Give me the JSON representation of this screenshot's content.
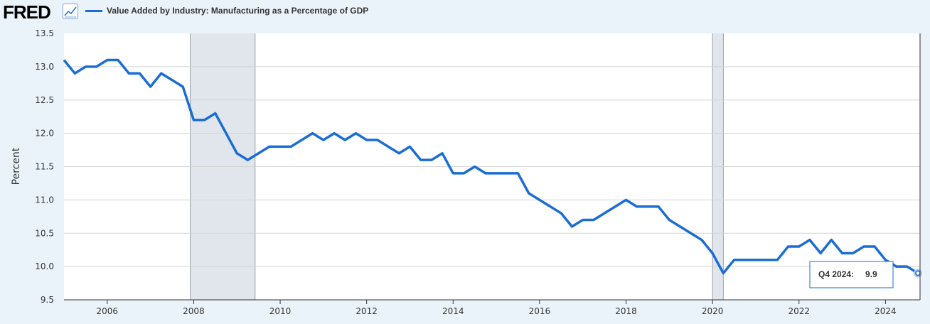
{
  "header": {
    "logo": "FRED",
    "logo_icon": "trend-chart-icon",
    "legend_label": "Value Added by Industry: Manufacturing as a Percentage of GDP",
    "series_color": "#1a6dd4"
  },
  "tooltip": {
    "label": "Q4 2024:",
    "value": "9.9"
  },
  "chart_data": {
    "type": "line",
    "title": "",
    "ylabel": "Percent",
    "xlabel": "",
    "ylim": [
      9.5,
      13.5
    ],
    "xlim": [
      2005.0,
      2024.8
    ],
    "yticks": [
      "9.5",
      "10.0",
      "10.5",
      "11.0",
      "11.5",
      "12.0",
      "12.5",
      "13.0",
      "13.5"
    ],
    "xticks": [
      "2006",
      "2008",
      "2010",
      "2012",
      "2014",
      "2016",
      "2018",
      "2020",
      "2022",
      "2024"
    ],
    "grid": true,
    "recessions": [
      [
        2007.92,
        2009.42
      ],
      [
        2020.0,
        2020.25
      ]
    ],
    "series": [
      {
        "name": "Value Added by Industry: Manufacturing as a Percentage of GDP",
        "color": "#1a6dd4",
        "points": [
          [
            2005.0,
            13.1
          ],
          [
            2005.25,
            12.9
          ],
          [
            2005.5,
            13.0
          ],
          [
            2005.75,
            13.0
          ],
          [
            2006.0,
            13.1
          ],
          [
            2006.25,
            13.1
          ],
          [
            2006.5,
            12.9
          ],
          [
            2006.75,
            12.9
          ],
          [
            2007.0,
            12.7
          ],
          [
            2007.25,
            12.9
          ],
          [
            2007.5,
            12.8
          ],
          [
            2007.75,
            12.7
          ],
          [
            2008.0,
            12.2
          ],
          [
            2008.25,
            12.2
          ],
          [
            2008.5,
            12.3
          ],
          [
            2008.75,
            12.0
          ],
          [
            2009.0,
            11.7
          ],
          [
            2009.25,
            11.6
          ],
          [
            2009.5,
            11.7
          ],
          [
            2009.75,
            11.8
          ],
          [
            2010.0,
            11.8
          ],
          [
            2010.25,
            11.8
          ],
          [
            2010.5,
            11.9
          ],
          [
            2010.75,
            12.0
          ],
          [
            2011.0,
            11.9
          ],
          [
            2011.25,
            12.0
          ],
          [
            2011.5,
            11.9
          ],
          [
            2011.75,
            12.0
          ],
          [
            2012.0,
            11.9
          ],
          [
            2012.25,
            11.9
          ],
          [
            2012.5,
            11.8
          ],
          [
            2012.75,
            11.7
          ],
          [
            2013.0,
            11.8
          ],
          [
            2013.25,
            11.6
          ],
          [
            2013.5,
            11.6
          ],
          [
            2013.75,
            11.7
          ],
          [
            2014.0,
            11.4
          ],
          [
            2014.25,
            11.4
          ],
          [
            2014.5,
            11.5
          ],
          [
            2014.75,
            11.4
          ],
          [
            2015.0,
            11.4
          ],
          [
            2015.25,
            11.4
          ],
          [
            2015.5,
            11.4
          ],
          [
            2015.75,
            11.1
          ],
          [
            2016.0,
            11.0
          ],
          [
            2016.25,
            10.9
          ],
          [
            2016.5,
            10.8
          ],
          [
            2016.75,
            10.6
          ],
          [
            2017.0,
            10.7
          ],
          [
            2017.25,
            10.7
          ],
          [
            2017.5,
            10.8
          ],
          [
            2017.75,
            10.9
          ],
          [
            2018.0,
            11.0
          ],
          [
            2018.25,
            10.9
          ],
          [
            2018.5,
            10.9
          ],
          [
            2018.75,
            10.9
          ],
          [
            2019.0,
            10.7
          ],
          [
            2019.25,
            10.6
          ],
          [
            2019.5,
            10.5
          ],
          [
            2019.75,
            10.4
          ],
          [
            2020.0,
            10.2
          ],
          [
            2020.25,
            9.9
          ],
          [
            2020.5,
            10.1
          ],
          [
            2020.75,
            10.1
          ],
          [
            2021.0,
            10.1
          ],
          [
            2021.25,
            10.1
          ],
          [
            2021.5,
            10.1
          ],
          [
            2021.75,
            10.3
          ],
          [
            2022.0,
            10.3
          ],
          [
            2022.25,
            10.4
          ],
          [
            2022.5,
            10.2
          ],
          [
            2022.75,
            10.4
          ],
          [
            2023.0,
            10.2
          ],
          [
            2023.25,
            10.2
          ],
          [
            2023.5,
            10.3
          ],
          [
            2023.75,
            10.3
          ],
          [
            2024.0,
            10.1
          ],
          [
            2024.25,
            10.0
          ],
          [
            2024.5,
            10.0
          ],
          [
            2024.75,
            9.9
          ]
        ]
      }
    ]
  }
}
